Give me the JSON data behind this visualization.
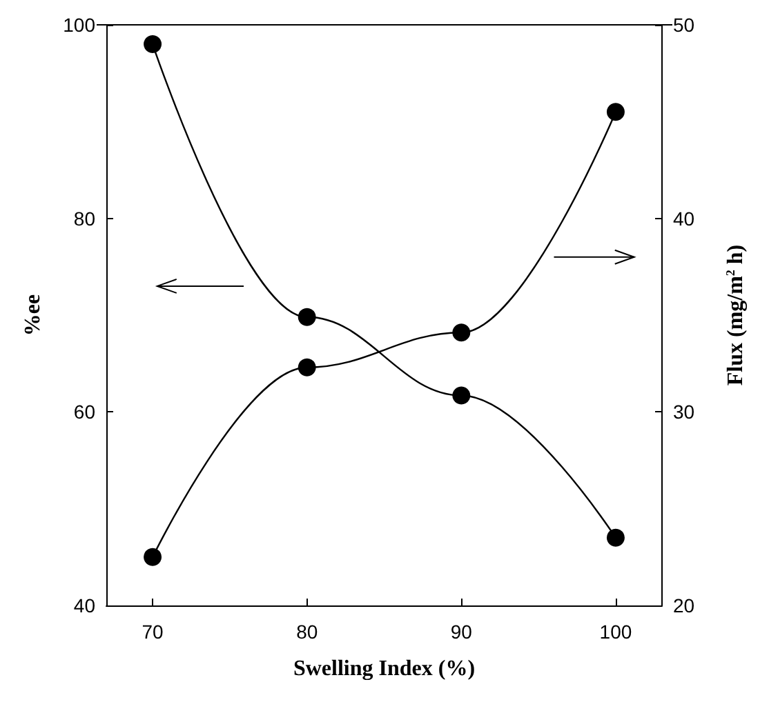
{
  "chart_data": {
    "type": "line",
    "xlabel": "Swelling Index (%)",
    "ylabel": "%ee",
    "y2label": "Flux (mg/m$^{2}$ h)",
    "x": [
      70,
      80,
      90,
      100
    ],
    "series": [
      {
        "color": "#000000",
        "values": [
          98,
          69.8,
          61.7,
          47.0
        ]
      },
      {
        "color": "#000000",
        "values": [
          22.5,
          32.3,
          34.1,
          45.5
        ],
        "axis": "y2"
      }
    ],
    "xlim": [
      67,
      103
    ],
    "xticks": [
      70,
      80,
      90,
      100
    ],
    "ylim": [
      40,
      100
    ],
    "yticks": [
      40,
      60,
      80,
      100
    ],
    "y2lim": [
      20,
      50
    ],
    "y2ticks": [
      20,
      30,
      40,
      50
    ],
    "marker": "circle",
    "line_style": "solid",
    "grid": false
  }
}
